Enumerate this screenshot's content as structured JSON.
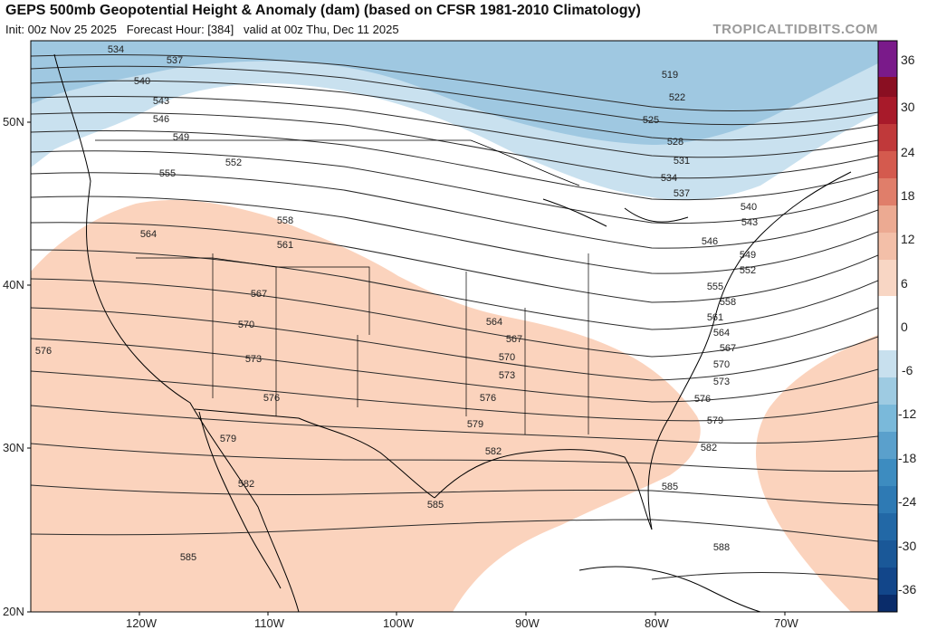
{
  "header": {
    "title": "GEPS 500mb Geopotential Height & Anomaly (dam) (based on CFSR 1981-2010 Climatology)",
    "subtitle_init": "Init: 00z Nov 25 2025",
    "subtitle_forecast": "Forecast Hour: [384]",
    "subtitle_valid": "valid at 00z Thu, Dec 11 2025",
    "credit": "TROPICALTIDBITS.COM"
  },
  "axes": {
    "latitude_labels": [
      "50N",
      "40N",
      "30N",
      "20N"
    ],
    "longitude_labels": [
      "120W",
      "110W",
      "100W",
      "90W",
      "80W",
      "70W"
    ]
  },
  "colorbar": {
    "labels": [
      "36",
      "30",
      "24",
      "18",
      "12",
      "6",
      "0",
      "-6",
      "-12",
      "-18",
      "-24",
      "-30",
      "-36"
    ],
    "colors": [
      "#7a1a8a",
      "#8a0f22",
      "#a81a2a",
      "#c0393a",
      "#d45a4e",
      "#e07e6a",
      "#ecaa92",
      "#f8d6c4",
      "#ffffff",
      "#c8e0ee",
      "#9ecbe2",
      "#6aaed2",
      "#3d8cc0",
      "#2268a6",
      "#12468a",
      "#0a2c6a"
    ]
  },
  "map": {
    "contour_labels": [
      "534",
      "537",
      "540",
      "543",
      "546",
      "549",
      "552",
      "555",
      "558",
      "561",
      "564",
      "567",
      "570",
      "573",
      "576",
      "579",
      "582",
      "585",
      "588",
      "519",
      "522",
      "525",
      "528",
      "531"
    ],
    "colors": {
      "warm_anomaly": "#fbd3bd",
      "cold_anomaly_light": "#c9e1ef",
      "cold_anomaly_mid": "#9fc8e1",
      "contour": "#2a2a2a",
      "coast": "#000000"
    }
  }
}
